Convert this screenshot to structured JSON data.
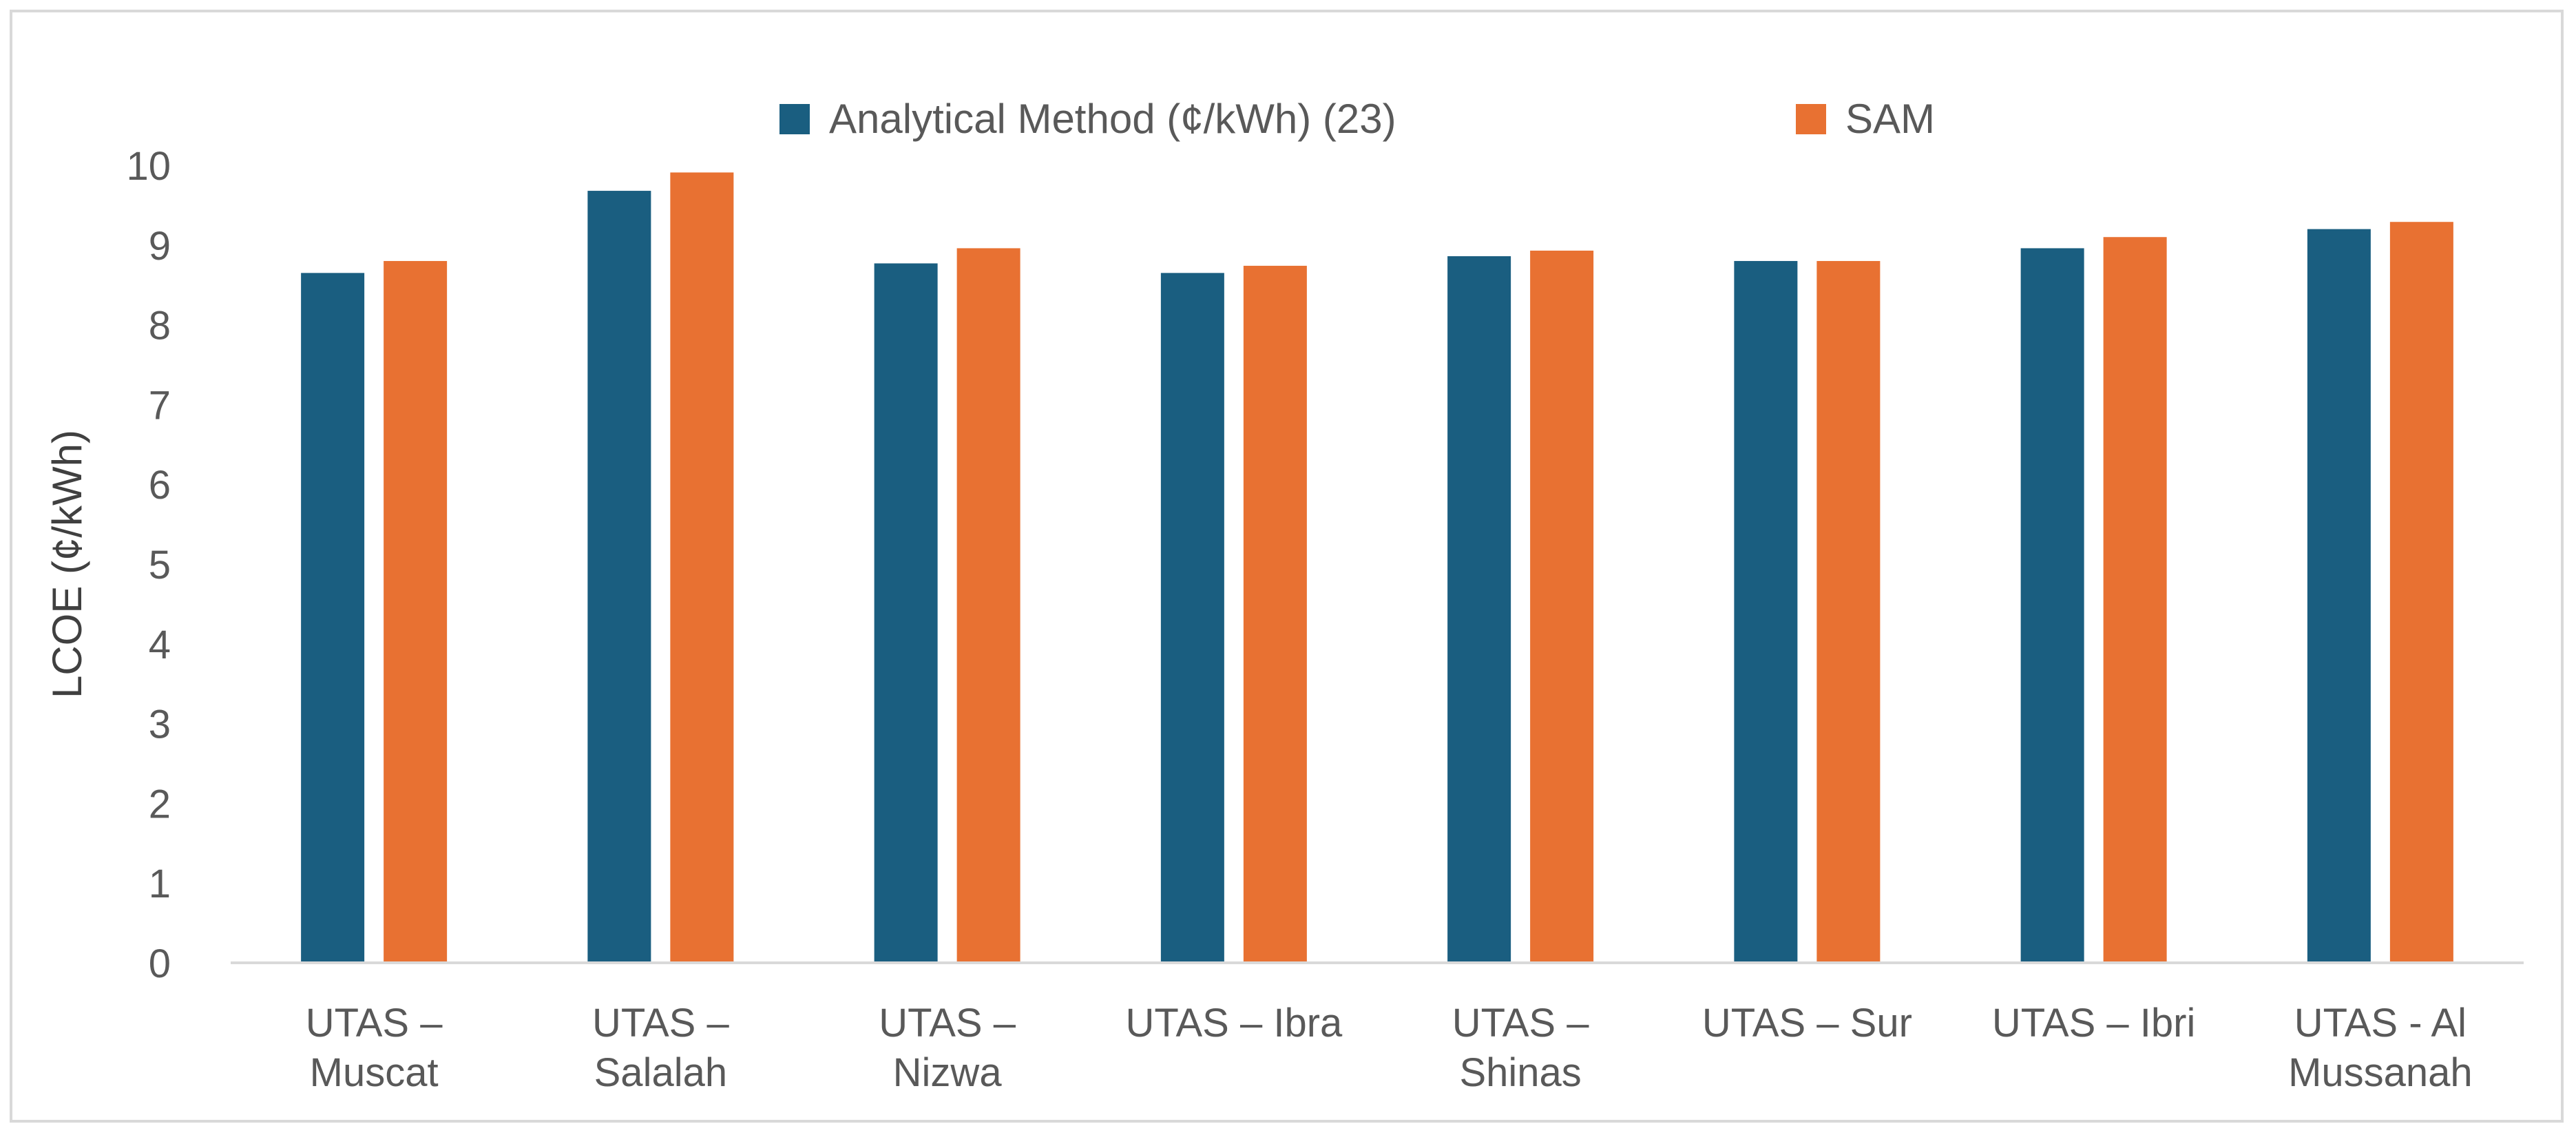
{
  "chart_data": {
    "type": "bar",
    "title": "",
    "xlabel": "",
    "ylabel": "LCOE (¢/kWh)",
    "ylim": [
      0,
      10
    ],
    "yticks": [
      "0",
      "1",
      "2",
      "3",
      "4",
      "5",
      "6",
      "7",
      "8",
      "9",
      "10"
    ],
    "grid": false,
    "legend_position": "top-center",
    "categories": [
      [
        "UTAS –",
        "Muscat"
      ],
      [
        "UTAS –",
        "Salalah"
      ],
      [
        "UTAS –",
        "Nizwa"
      ],
      [
        "UTAS – Ibra"
      ],
      [
        "UTAS –",
        "Shinas"
      ],
      [
        "UTAS – Sur"
      ],
      [
        "UTAS – Ibri"
      ],
      [
        "UTAS - Al",
        "Mussanah"
      ]
    ],
    "series": [
      {
        "name": "Analytical Method (¢/kWh) (23)",
        "color": "#1a5e80",
        "values": [
          8.65,
          9.68,
          8.77,
          8.65,
          8.86,
          8.8,
          8.96,
          9.2
        ]
      },
      {
        "name": "SAM",
        "color": "#e87132",
        "values": [
          8.8,
          9.91,
          8.96,
          8.74,
          8.93,
          8.8,
          9.1,
          9.29
        ]
      }
    ]
  }
}
